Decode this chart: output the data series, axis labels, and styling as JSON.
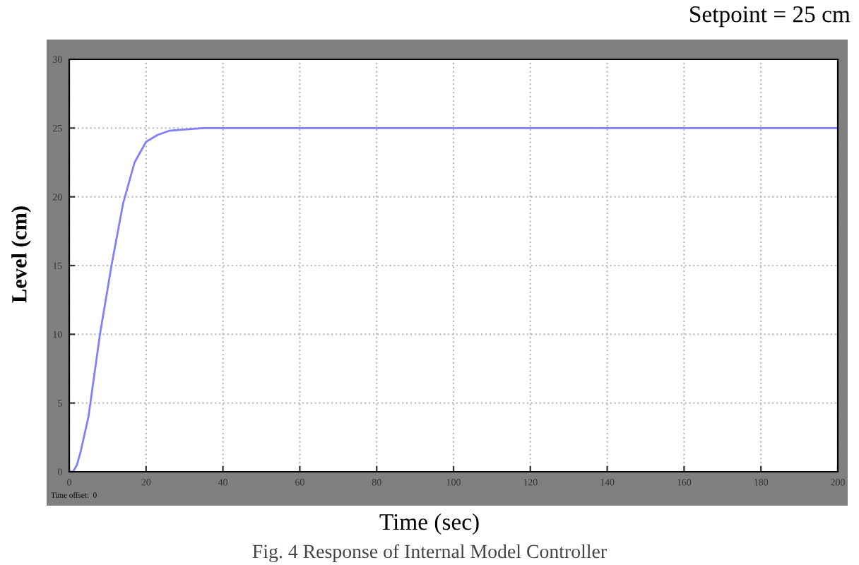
{
  "chart_data": {
    "type": "line",
    "title": "Setpoint = 25 cm",
    "xlabel": "Time (sec)",
    "ylabel": "Level (cm)",
    "annotations": [
      "Time offset:  0",
      "Fig. 4 Response of Internal Model Controller"
    ],
    "x": [
      0,
      1,
      2,
      3,
      5,
      8,
      11,
      14,
      17,
      20,
      23,
      26,
      30,
      35,
      40,
      200
    ],
    "series": [
      {
        "color": "#8080ff",
        "values": [
          0,
          0,
          0.5,
          1.5,
          4,
          10,
          15,
          19.5,
          22.5,
          24,
          24.5,
          24.8,
          24.9,
          25,
          25,
          25
        ]
      }
    ],
    "xlim": [
      0,
      200
    ],
    "ylim": [
      0,
      30
    ],
    "xticks": [
      0,
      20,
      40,
      60,
      80,
      100,
      120,
      140,
      160,
      180,
      200
    ],
    "yticks": [
      0,
      5,
      10,
      15,
      20,
      25,
      30
    ],
    "grid": true,
    "marker": "none",
    "line_style": "solid"
  }
}
